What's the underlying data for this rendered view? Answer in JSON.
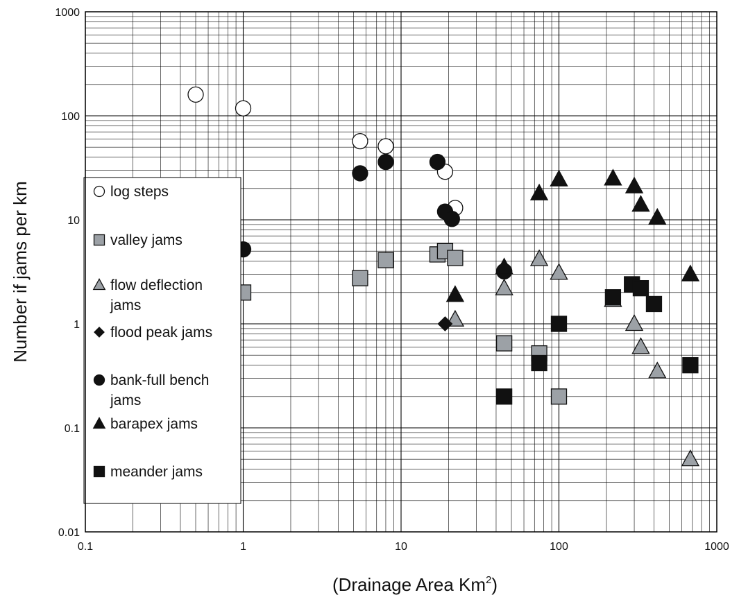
{
  "chart_data": {
    "type": "scatter",
    "title": "",
    "xlabel": "(Drainage Area Km",
    "xlabel_superscript": "2",
    "xlabel_suffix": ")",
    "ylabel": "Number if jams per km",
    "xscale": "log",
    "yscale": "log",
    "xlim": [
      0.1,
      1000
    ],
    "ylim": [
      0.01,
      1000
    ],
    "grid": true,
    "x_ticks": [
      "0.1",
      "1",
      "10",
      "100",
      "1000"
    ],
    "y_ticks": [
      "0.01",
      "0.1",
      "1",
      "10",
      "100",
      "1000"
    ],
    "legend": {
      "placement": "left",
      "entries": [
        {
          "series": 0,
          "lines": [
            "log steps"
          ]
        },
        {
          "series": 1,
          "lines": [
            "valley jams"
          ]
        },
        {
          "series": 2,
          "lines": [
            "flow deflection",
            "jams"
          ]
        },
        {
          "series": 3,
          "lines": [
            "flood peak jams"
          ]
        },
        {
          "series": 4,
          "lines": [
            "bank-full bench",
            "jams"
          ]
        },
        {
          "series": 5,
          "lines": [
            "barapex jams"
          ]
        },
        {
          "series": 6,
          "lines": [
            "meander jams"
          ]
        }
      ]
    },
    "series": [
      {
        "name": "log steps",
        "marker": "circle",
        "fill": "#ffffff",
        "points": [
          [
            0.5,
            160
          ],
          [
            1,
            118
          ],
          [
            5.5,
            57
          ],
          [
            8,
            51
          ],
          [
            19,
            29
          ],
          [
            22,
            13
          ],
          [
            45,
            3.2
          ]
        ]
      },
      {
        "name": "valley jams",
        "marker": "square",
        "fill": "#9ca1a6",
        "points": [
          [
            1,
            2.0
          ],
          [
            5.5,
            2.75
          ],
          [
            8,
            4.1
          ],
          [
            17,
            4.65
          ],
          [
            19,
            5.0
          ],
          [
            22,
            4.3
          ],
          [
            45,
            0.65
          ],
          [
            75,
            0.52
          ],
          [
            100,
            0.2
          ]
        ]
      },
      {
        "name": "flow deflection jams",
        "marker": "triangle",
        "fill": "#9ca1a6",
        "points": [
          [
            22,
            1.1
          ],
          [
            45,
            2.2
          ],
          [
            75,
            4.2
          ],
          [
            100,
            3.1
          ],
          [
            220,
            1.7
          ],
          [
            300,
            1.0
          ],
          [
            330,
            0.6
          ],
          [
            420,
            0.35
          ],
          [
            680,
            0.05
          ]
        ]
      },
      {
        "name": "flood peak jams",
        "marker": "diamond",
        "fill": "#111111",
        "points": [
          [
            19,
            1.0
          ]
        ]
      },
      {
        "name": "bank-full bench jams",
        "marker": "circle",
        "fill": "#111111",
        "points": [
          [
            1,
            5.2
          ],
          [
            5.5,
            28
          ],
          [
            8,
            36
          ],
          [
            17,
            36
          ],
          [
            19,
            12
          ],
          [
            21,
            10.2
          ],
          [
            45,
            3.2
          ]
        ]
      },
      {
        "name": "barapex jams",
        "marker": "triangle",
        "fill": "#111111",
        "points": [
          [
            22,
            1.9
          ],
          [
            45,
            3.5
          ],
          [
            75,
            18
          ],
          [
            100,
            24.5
          ],
          [
            220,
            25
          ],
          [
            300,
            21
          ],
          [
            330,
            14
          ],
          [
            420,
            10.5
          ],
          [
            680,
            3.0
          ]
        ]
      },
      {
        "name": "meander jams",
        "marker": "square",
        "fill": "#111111",
        "points": [
          [
            45,
            0.2
          ],
          [
            75,
            0.42
          ],
          [
            100,
            1.0
          ],
          [
            220,
            1.8
          ],
          [
            290,
            2.4
          ],
          [
            330,
            2.2
          ],
          [
            400,
            1.55
          ],
          [
            680,
            0.4
          ]
        ]
      }
    ]
  }
}
